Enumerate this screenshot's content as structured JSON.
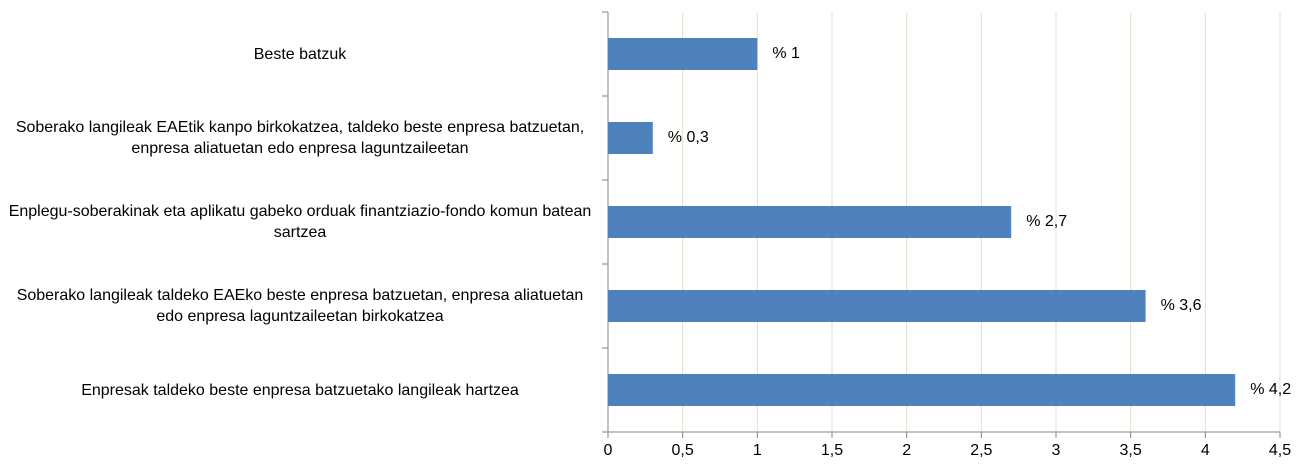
{
  "chart_data": {
    "type": "bar",
    "orientation": "horizontal",
    "categories": [
      "Beste batzuk",
      "Soberako langileak EAEtik kanpo birkokatzea, taldeko beste enpresa batzuetan, enpresa aliatuetan edo enpresa laguntzaileetan",
      "Enplegu-soberakinak eta aplikatu gabeko orduak finantziazio-fondo komun batean sartzea",
      "Soberako langileak taldeko EAEko beste enpresa batzuetan, enpresa aliatuetan edo enpresa laguntzaileetan birkokatzea",
      "Enpresak taldeko beste enpresa batzuetako langileak hartzea"
    ],
    "values": [
      1,
      0.3,
      2.7,
      3.6,
      4.2
    ],
    "value_labels": [
      "% 1",
      "% 0,3",
      "% 2,7",
      "% 3,6",
      "% 4,2"
    ],
    "color": "#4f81bd",
    "xlim": [
      0,
      4.5
    ],
    "xticks": [
      0,
      {
        "value": 0.5,
        "label": "0,5"
      },
      1,
      {
        "value": 1.5,
        "label": "1,5"
      },
      2,
      {
        "value": 2.5,
        "label": "2,5"
      },
      3,
      {
        "value": 3.5,
        "label": "3,5"
      },
      4,
      {
        "value": 4.5,
        "label": "4,5"
      }
    ],
    "grid": true
  }
}
